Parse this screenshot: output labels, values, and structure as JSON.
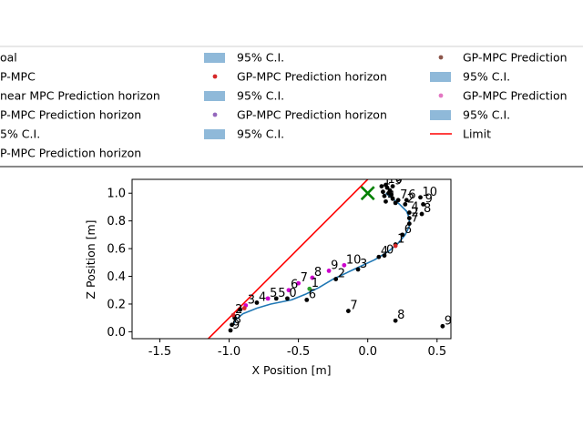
{
  "chart_data": {
    "type": "scatter",
    "title": "",
    "xlabel": "X Position [m]",
    "ylabel": "Z Position [m]",
    "xlim": [
      -1.7,
      0.6
    ],
    "ylim": [
      -0.05,
      1.1
    ],
    "xticks": [
      "-1.5",
      "-1.0",
      "-0.5",
      "0.0",
      "0.5"
    ],
    "xtick_values": [
      -1.5,
      -1.0,
      -0.5,
      0.0,
      0.5
    ],
    "yticks": [
      "0.0",
      "0.2",
      "0.4",
      "0.6",
      "0.8",
      "1.0"
    ],
    "ytick_values": [
      0.0,
      0.2,
      0.4,
      0.6,
      0.8,
      1.0
    ],
    "grid": false,
    "legend_placement": "top",
    "legend": [
      {
        "label": "oal",
        "kind": "none",
        "color": ""
      },
      {
        "label": "P-MPC",
        "kind": "none",
        "color": ""
      },
      {
        "label": "near MPC Prediction horizon",
        "kind": "none",
        "color": ""
      },
      {
        "label": "P-MPC Prediction horizon",
        "kind": "none",
        "color": ""
      },
      {
        "label": "5% C.I.",
        "kind": "none",
        "color": ""
      },
      {
        "label": "P-MPC Prediction horizon",
        "kind": "none",
        "color": ""
      },
      {
        "label": "95% C.I.",
        "kind": "patch",
        "color": "#8fb9d9"
      },
      {
        "label": "GP-MPC Prediction horizon",
        "kind": "dot",
        "color": "#d62728"
      },
      {
        "label": "95% C.I.",
        "kind": "patch",
        "color": "#8fb9d9"
      },
      {
        "label": "GP-MPC Prediction horizon",
        "kind": "dot",
        "color": "#9467bd"
      },
      {
        "label": "95% C.I.",
        "kind": "patch",
        "color": "#8fb9d9"
      },
      {
        "label": "GP-MPC Prediction",
        "kind": "dot",
        "color": "#8c564b"
      },
      {
        "label": "95% C.I.",
        "kind": "patch",
        "color": "#8fb9d9"
      },
      {
        "label": "GP-MPC Prediction",
        "kind": "dot",
        "color": "#e377c2"
      },
      {
        "label": "95% C.I.",
        "kind": "patch",
        "color": "#8fb9d9"
      },
      {
        "label": "Limit",
        "kind": "line",
        "color": "#ff0000"
      }
    ],
    "goal": {
      "x": 0.0,
      "y": 1.0,
      "color": "#008000"
    },
    "limit": {
      "color": "#ff0000",
      "points": [
        [
          -1.15,
          -0.05
        ],
        [
          0.0,
          1.1
        ]
      ]
    },
    "trajectory": {
      "color": "#1f77b4",
      "points": [
        [
          -0.97,
          0.05
        ],
        [
          -0.95,
          0.09
        ],
        [
          -0.9,
          0.13
        ],
        [
          -0.8,
          0.17
        ],
        [
          -0.7,
          0.2
        ],
        [
          -0.55,
          0.23
        ],
        [
          -0.45,
          0.27
        ],
        [
          -0.35,
          0.32
        ],
        [
          -0.25,
          0.38
        ],
        [
          -0.1,
          0.45
        ],
        [
          0.05,
          0.52
        ],
        [
          0.15,
          0.58
        ],
        [
          0.22,
          0.64
        ],
        [
          0.27,
          0.7
        ],
        [
          0.3,
          0.76
        ],
        [
          0.3,
          0.82
        ],
        [
          0.28,
          0.87
        ],
        [
          0.23,
          0.92
        ],
        [
          0.18,
          0.96
        ],
        [
          0.13,
          1.0
        ]
      ]
    },
    "series": [
      {
        "name": "",
        "color": "#000000",
        "points": [
          {
            "x": -0.99,
            "y": 0.01,
            "label": "9"
          },
          {
            "x": -0.98,
            "y": 0.05,
            "label": "8"
          },
          {
            "x": -0.96,
            "y": 0.1,
            "label": ""
          },
          {
            "x": -0.92,
            "y": 0.16,
            "label": ""
          },
          {
            "x": -0.8,
            "y": 0.21,
            "label": "4"
          },
          {
            "x": -0.66,
            "y": 0.24,
            "label": "5"
          },
          {
            "x": -0.58,
            "y": 0.24,
            "label": "0"
          },
          {
            "x": -0.44,
            "y": 0.23,
            "label": "6"
          },
          {
            "x": -0.14,
            "y": 0.15,
            "label": "7"
          },
          {
            "x": 0.2,
            "y": 0.08,
            "label": "8"
          },
          {
            "x": 0.54,
            "y": 0.04,
            "label": "9"
          },
          {
            "x": -0.23,
            "y": 0.38,
            "label": "2"
          },
          {
            "x": -0.07,
            "y": 0.45,
            "label": "3"
          },
          {
            "x": 0.08,
            "y": 0.54,
            "label": "4"
          },
          {
            "x": 0.12,
            "y": 0.55,
            "label": "0"
          },
          {
            "x": 0.2,
            "y": 0.63,
            "label": "1"
          },
          {
            "x": 0.25,
            "y": 0.7,
            "label": "6"
          },
          {
            "x": 0.3,
            "y": 0.78,
            "label": "7"
          },
          {
            "x": 0.3,
            "y": 0.82,
            "label": "2"
          },
          {
            "x": 0.3,
            "y": 0.86,
            "label": "4"
          },
          {
            "x": 0.39,
            "y": 0.85,
            "label": "8"
          },
          {
            "x": 0.4,
            "y": 0.92,
            "label": "9"
          },
          {
            "x": 0.38,
            "y": 0.97,
            "label": "10"
          },
          {
            "x": 0.28,
            "y": 0.95,
            "label": "6"
          },
          {
            "x": 0.22,
            "y": 0.95,
            "label": "7"
          },
          {
            "x": 0.18,
            "y": 0.96,
            "label": ""
          },
          {
            "x": 0.13,
            "y": 0.94,
            "label": "4"
          },
          {
            "x": 0.12,
            "y": 0.98,
            "label": ""
          },
          {
            "x": 0.15,
            "y": 1.0,
            "label": ""
          },
          {
            "x": 0.11,
            "y": 1.01,
            "label": ""
          },
          {
            "x": 0.16,
            "y": 1.02,
            "label": ""
          },
          {
            "x": 0.14,
            "y": 1.04,
            "label": ""
          },
          {
            "x": 0.18,
            "y": 1.05,
            "label": "9"
          },
          {
            "x": 0.1,
            "y": 1.05,
            "label": "1"
          },
          {
            "x": 0.13,
            "y": 1.06,
            "label": "10"
          },
          {
            "x": 0.17,
            "y": 0.99,
            "label": ""
          },
          {
            "x": 0.2,
            "y": 0.93,
            "label": ""
          },
          {
            "x": 0.27,
            "y": 0.92,
            "label": "2"
          }
        ]
      },
      {
        "name": "",
        "color": "#cc00cc",
        "points": [
          {
            "x": -0.57,
            "y": 0.3,
            "label": "6"
          },
          {
            "x": -0.5,
            "y": 0.35,
            "label": "7"
          },
          {
            "x": -0.4,
            "y": 0.39,
            "label": "8"
          },
          {
            "x": -0.28,
            "y": 0.44,
            "label": "9"
          },
          {
            "x": -0.17,
            "y": 0.48,
            "label": "10"
          },
          {
            "x": -0.72,
            "y": 0.24,
            "label": "5"
          },
          {
            "x": -0.88,
            "y": 0.19,
            "label": "3"
          }
        ]
      },
      {
        "name": "",
        "color": "#2ca02c",
        "points": [
          {
            "x": -0.42,
            "y": 0.31,
            "label": "1"
          }
        ]
      },
      {
        "name": "",
        "color": "#d62728",
        "points": [
          {
            "x": -0.97,
            "y": 0.12,
            "label": "2"
          },
          {
            "x": -0.89,
            "y": 0.17,
            "label": ""
          },
          {
            "x": 0.2,
            "y": 0.62,
            "label": ""
          }
        ]
      }
    ]
  }
}
